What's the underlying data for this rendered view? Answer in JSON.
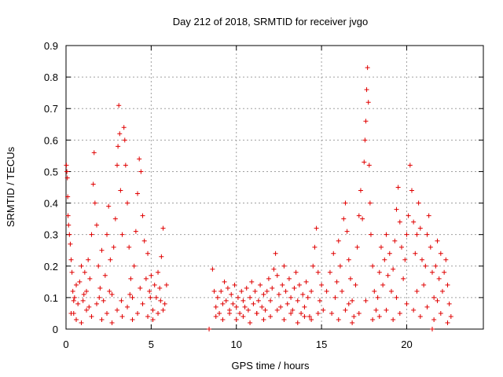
{
  "chart_data": {
    "type": "scatter",
    "title": "Day 212 of 2018, SRMTID for receiver jvgo",
    "xlabel": "GPS time / hours",
    "ylabel": "SRMTID / TECUs",
    "xlim": [
      0,
      24.5
    ],
    "ylim": [
      0,
      0.9
    ],
    "xticks": [
      0,
      5,
      10,
      15,
      20
    ],
    "yticks": [
      0,
      0.1,
      0.2,
      0.3,
      0.4,
      0.5,
      0.6,
      0.7,
      0.8,
      0.9
    ],
    "grid": true,
    "marker": "plus",
    "color": "#e00000",
    "series": [
      {
        "name": "SRMTID",
        "points": [
          [
            0.02,
            0.52
          ],
          [
            0.05,
            0.5
          ],
          [
            0.08,
            0.48
          ],
          [
            0.1,
            0.42
          ],
          [
            0.12,
            0.36
          ],
          [
            0.15,
            0.33
          ],
          [
            0.2,
            0.3
          ],
          [
            0.25,
            0.27
          ],
          [
            0.3,
            0.22
          ],
          [
            0.35,
            0.18
          ],
          [
            0.4,
            0.12
          ],
          [
            0.45,
            0.05
          ],
          [
            0.5,
            0.1
          ],
          [
            0.6,
            0.14
          ],
          [
            0.7,
            0.08
          ],
          [
            0.8,
            0.15
          ],
          [
            0.9,
            0.2
          ],
          [
            1.0,
            0.09
          ],
          [
            1.1,
            0.18
          ],
          [
            1.2,
            0.12
          ],
          [
            1.3,
            0.22
          ],
          [
            1.4,
            0.16
          ],
          [
            1.5,
            0.3
          ],
          [
            1.6,
            0.46
          ],
          [
            1.65,
            0.56
          ],
          [
            1.7,
            0.4
          ],
          [
            1.8,
            0.33
          ],
          [
            1.9,
            0.2
          ],
          [
            2.0,
            0.13
          ],
          [
            2.1,
            0.25
          ],
          [
            2.2,
            0.09
          ],
          [
            2.3,
            0.17
          ],
          [
            2.4,
            0.3
          ],
          [
            2.5,
            0.39
          ],
          [
            2.6,
            0.22
          ],
          [
            2.7,
            0.11
          ],
          [
            2.8,
            0.26
          ],
          [
            2.9,
            0.35
          ],
          [
            3.0,
            0.52
          ],
          [
            3.05,
            0.58
          ],
          [
            3.1,
            0.71
          ],
          [
            3.15,
            0.62
          ],
          [
            3.2,
            0.44
          ],
          [
            3.3,
            0.3
          ],
          [
            3.4,
            0.64
          ],
          [
            3.45,
            0.6
          ],
          [
            3.5,
            0.52
          ],
          [
            3.6,
            0.4
          ],
          [
            3.7,
            0.26
          ],
          [
            3.8,
            0.16
          ],
          [
            3.9,
            0.1
          ],
          [
            4.0,
            0.2
          ],
          [
            4.1,
            0.31
          ],
          [
            4.2,
            0.43
          ],
          [
            4.3,
            0.54
          ],
          [
            4.4,
            0.5
          ],
          [
            4.5,
            0.36
          ],
          [
            4.6,
            0.28
          ],
          [
            4.7,
            0.16
          ],
          [
            4.8,
            0.24
          ],
          [
            4.9,
            0.12
          ],
          [
            5.0,
            0.17
          ],
          [
            5.1,
            0.06
          ],
          [
            5.2,
            0.14
          ],
          [
            5.3,
            0.1
          ],
          [
            5.4,
            0.18
          ],
          [
            5.5,
            0.13
          ],
          [
            5.6,
            0.23
          ],
          [
            5.7,
            0.32
          ],
          [
            5.8,
            0.08
          ],
          [
            5.9,
            0.14
          ],
          [
            0.3,
            0.05
          ],
          [
            0.6,
            0.03
          ],
          [
            0.9,
            0.02
          ],
          [
            1.2,
            0.06
          ],
          [
            1.5,
            0.04
          ],
          [
            1.8,
            0.08
          ],
          [
            2.1,
            0.03
          ],
          [
            2.4,
            0.05
          ],
          [
            2.7,
            0.02
          ],
          [
            3.0,
            0.06
          ],
          [
            3.3,
            0.04
          ],
          [
            3.6,
            0.07
          ],
          [
            3.9,
            0.03
          ],
          [
            4.2,
            0.05
          ],
          [
            4.5,
            0.08
          ],
          [
            4.8,
            0.04
          ],
          [
            5.1,
            0.03
          ],
          [
            5.4,
            0.05
          ],
          [
            5.7,
            0.06
          ],
          [
            0.45,
            0.09
          ],
          [
            1.05,
            0.11
          ],
          [
            1.35,
            0.07
          ],
          [
            1.95,
            0.1
          ],
          [
            2.55,
            0.12
          ],
          [
            3.25,
            0.09
          ],
          [
            3.75,
            0.11
          ],
          [
            4.35,
            0.13
          ],
          [
            4.95,
            0.1
          ],
          [
            5.55,
            0.09
          ],
          [
            8.4,
            0.0
          ],
          [
            8.6,
            0.19
          ],
          [
            8.7,
            0.12
          ],
          [
            8.8,
            0.07
          ],
          [
            8.9,
            0.1
          ],
          [
            9.0,
            0.05
          ],
          [
            9.1,
            0.12
          ],
          [
            9.2,
            0.08
          ],
          [
            9.3,
            0.15
          ],
          [
            9.4,
            0.09
          ],
          [
            9.5,
            0.13
          ],
          [
            9.6,
            0.06
          ],
          [
            9.7,
            0.11
          ],
          [
            9.8,
            0.08
          ],
          [
            9.9,
            0.14
          ],
          [
            10.0,
            0.07
          ],
          [
            10.1,
            0.1
          ],
          [
            10.2,
            0.05
          ],
          [
            10.3,
            0.12
          ],
          [
            10.4,
            0.09
          ],
          [
            10.5,
            0.07
          ],
          [
            10.6,
            0.13
          ],
          [
            10.7,
            0.06
          ],
          [
            10.8,
            0.1
          ],
          [
            10.9,
            0.15
          ],
          [
            11.0,
            0.08
          ],
          [
            11.1,
            0.12
          ],
          [
            11.2,
            0.05
          ],
          [
            11.3,
            0.09
          ],
          [
            11.4,
            0.14
          ],
          [
            11.5,
            0.07
          ],
          [
            11.6,
            0.11
          ],
          [
            11.7,
            0.06
          ],
          [
            11.8,
            0.12
          ],
          [
            11.9,
            0.16
          ],
          [
            12.0,
            0.09
          ],
          [
            12.1,
            0.13
          ],
          [
            12.2,
            0.19
          ],
          [
            12.3,
            0.24
          ],
          [
            12.4,
            0.17
          ],
          [
            12.5,
            0.11
          ],
          [
            12.6,
            0.07
          ],
          [
            12.7,
            0.14
          ],
          [
            12.8,
            0.2
          ],
          [
            12.9,
            0.12
          ],
          [
            13.0,
            0.08
          ],
          [
            13.1,
            0.16
          ],
          [
            13.2,
            0.1
          ],
          [
            13.3,
            0.06
          ],
          [
            13.4,
            0.13
          ],
          [
            13.5,
            0.18
          ],
          [
            13.6,
            0.09
          ],
          [
            13.7,
            0.14
          ],
          [
            13.8,
            0.05
          ],
          [
            13.9,
            0.11
          ],
          [
            14.0,
            0.07
          ],
          [
            14.1,
            0.15
          ],
          [
            14.2,
            0.1
          ],
          [
            14.3,
            0.04
          ],
          [
            14.4,
            0.12
          ],
          [
            14.5,
            0.2
          ],
          [
            14.6,
            0.26
          ],
          [
            14.7,
            0.32
          ],
          [
            14.8,
            0.18
          ],
          [
            14.9,
            0.09
          ],
          [
            15.0,
            0.14
          ],
          [
            15.1,
            0.06
          ],
          [
            8.8,
            0.04
          ],
          [
            9.2,
            0.03
          ],
          [
            9.6,
            0.05
          ],
          [
            10.0,
            0.03
          ],
          [
            10.4,
            0.04
          ],
          [
            10.8,
            0.02
          ],
          [
            11.2,
            0.05
          ],
          [
            11.6,
            0.03
          ],
          [
            12.0,
            0.04
          ],
          [
            12.4,
            0.06
          ],
          [
            12.8,
            0.03
          ],
          [
            13.2,
            0.05
          ],
          [
            13.6,
            0.02
          ],
          [
            14.0,
            0.04
          ],
          [
            14.4,
            0.03
          ],
          [
            14.8,
            0.05
          ],
          [
            15.3,
            0.12
          ],
          [
            15.5,
            0.18
          ],
          [
            15.7,
            0.24
          ],
          [
            15.9,
            0.15
          ],
          [
            16.0,
            0.28
          ],
          [
            16.1,
            0.2
          ],
          [
            16.2,
            0.12
          ],
          [
            16.3,
            0.35
          ],
          [
            16.4,
            0.4
          ],
          [
            16.5,
            0.31
          ],
          [
            16.6,
            0.22
          ],
          [
            16.7,
            0.16
          ],
          [
            16.8,
            0.09
          ],
          [
            16.9,
            0.04
          ],
          [
            17.0,
            0.14
          ],
          [
            17.1,
            0.26
          ],
          [
            17.2,
            0.36
          ],
          [
            17.3,
            0.44
          ],
          [
            17.4,
            0.35
          ],
          [
            17.5,
            0.53
          ],
          [
            17.55,
            0.6
          ],
          [
            17.6,
            0.66
          ],
          [
            17.65,
            0.76
          ],
          [
            17.7,
            0.83
          ],
          [
            17.75,
            0.72
          ],
          [
            17.8,
            0.52
          ],
          [
            17.85,
            0.4
          ],
          [
            17.9,
            0.3
          ],
          [
            18.0,
            0.2
          ],
          [
            18.1,
            0.12
          ],
          [
            18.2,
            0.06
          ],
          [
            18.3,
            0.1
          ],
          [
            18.4,
            0.18
          ],
          [
            18.5,
            0.26
          ],
          [
            18.6,
            0.14
          ],
          [
            18.7,
            0.22
          ],
          [
            18.8,
            0.3
          ],
          [
            18.9,
            0.17
          ],
          [
            19.0,
            0.24
          ],
          [
            19.1,
            0.12
          ],
          [
            19.2,
            0.19
          ],
          [
            19.3,
            0.28
          ],
          [
            19.4,
            0.38
          ],
          [
            19.5,
            0.45
          ],
          [
            19.6,
            0.34
          ],
          [
            19.7,
            0.26
          ],
          [
            19.8,
            0.16
          ],
          [
            19.9,
            0.22
          ],
          [
            20.0,
            0.3
          ],
          [
            20.1,
            0.36
          ],
          [
            20.2,
            0.52
          ],
          [
            20.3,
            0.44
          ],
          [
            20.4,
            0.34
          ],
          [
            20.5,
            0.24
          ],
          [
            20.6,
            0.3
          ],
          [
            20.7,
            0.4
          ],
          [
            20.8,
            0.32
          ],
          [
            20.9,
            0.22
          ],
          [
            21.0,
            0.14
          ],
          [
            21.1,
            0.2
          ],
          [
            21.2,
            0.3
          ],
          [
            21.3,
            0.36
          ],
          [
            21.4,
            0.26
          ],
          [
            21.5,
            0.18
          ],
          [
            21.6,
            0.1
          ],
          [
            21.7,
            0.2
          ],
          [
            21.8,
            0.28
          ],
          [
            21.9,
            0.16
          ],
          [
            22.0,
            0.24
          ],
          [
            22.1,
            0.12
          ],
          [
            22.2,
            0.18
          ],
          [
            22.3,
            0.22
          ],
          [
            22.4,
            0.14
          ],
          [
            22.5,
            0.08
          ],
          [
            22.6,
            0.04
          ],
          [
            15.6,
            0.05
          ],
          [
            16.0,
            0.03
          ],
          [
            16.4,
            0.06
          ],
          [
            16.8,
            0.02
          ],
          [
            17.2,
            0.05
          ],
          [
            18.0,
            0.03
          ],
          [
            18.4,
            0.04
          ],
          [
            18.8,
            0.06
          ],
          [
            19.2,
            0.03
          ],
          [
            19.6,
            0.05
          ],
          [
            20.0,
            0.08
          ],
          [
            20.4,
            0.06
          ],
          [
            20.8,
            0.04
          ],
          [
            21.2,
            0.07
          ],
          [
            21.6,
            0.03
          ],
          [
            22.0,
            0.05
          ],
          [
            22.4,
            0.02
          ],
          [
            21.5,
            0.0
          ],
          [
            15.8,
            0.1
          ],
          [
            16.6,
            0.08
          ],
          [
            17.6,
            0.09
          ],
          [
            19.4,
            0.1
          ],
          [
            20.6,
            0.12
          ],
          [
            21.8,
            0.09
          ]
        ]
      }
    ]
  }
}
